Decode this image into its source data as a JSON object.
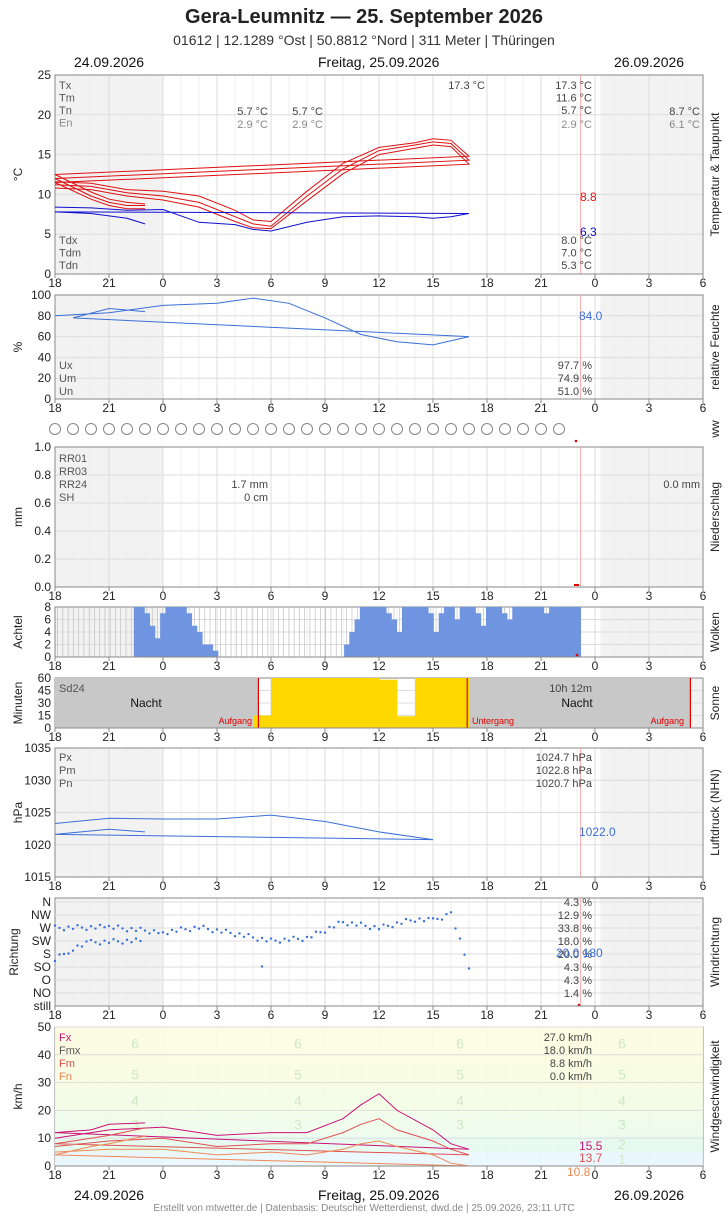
{
  "header": {
    "title": "Gera-Leumnitz  —  25. September 2026",
    "subtitle": "01612  |  12.1289 °Ost  |  50.8812 °Nord  |  311 Meter  |  Thüringen",
    "date_left": "24.09.2026",
    "date_center": "Freitag, 25.09.2026",
    "date_right": "26.09.2026"
  },
  "footer": "Erstellt von mtwetter.de | Datenbasis: Deutscher Wetterdienst, dwd.de | 25.09.2026, 23:11 UTC",
  "x_ticks": [
    "18",
    "21",
    "0",
    "3",
    "6",
    "9",
    "12",
    "15",
    "18",
    "21",
    "0",
    "3",
    "6"
  ],
  "colors": {
    "temp": "#e01010",
    "dew": "#1010d0",
    "blue": "#3a6fd8",
    "cloud": "#6f94e0",
    "sun": "#ffd800",
    "wind_gust": "#cc1177",
    "wind_mean": "#e05050",
    "wind_min": "#ee8855"
  },
  "chart_data": [
    {
      "id": "temperature",
      "type": "line",
      "ylabel": "°C",
      "side_label": "Temperatur & Taupunkt",
      "ylim": [
        0,
        25
      ],
      "yticks": [
        "0",
        "5",
        "10",
        "15",
        "20",
        "25"
      ],
      "x": [
        "18:00",
        "20:00",
        "22:00",
        "00:00",
        "02:00",
        "04:00",
        "05:00",
        "06:00",
        "08:00",
        "10:00",
        "12:00",
        "14:00",
        "15:00",
        "16:00",
        "17:00",
        "18:00",
        "20:00",
        "21:00",
        "22:00",
        "23:00"
      ],
      "series": [
        {
          "name": "Tx",
          "values": [
            11.6,
            11.4,
            10.6,
            10.4,
            9.8,
            8.0,
            6.8,
            6.6,
            10.4,
            13.9,
            15.9,
            16.5,
            17.0,
            16.8,
            14.8,
            12.5,
            10.3,
            9.4,
            9.0,
            8.8
          ]
        },
        {
          "name": "Tm",
          "values": [
            11.2,
            11.0,
            10.2,
            9.8,
            9.0,
            7.2,
            6.3,
            6.0,
            9.8,
            13.2,
            15.5,
            16.2,
            16.6,
            16.4,
            14.3,
            12.0,
            9.8,
            9.0,
            8.6,
            8.6
          ]
        },
        {
          "name": "Tn",
          "values": [
            10.8,
            10.6,
            9.8,
            9.3,
            8.4,
            6.6,
            5.8,
            5.7,
            9.2,
            12.6,
            15.0,
            15.8,
            16.2,
            16.0,
            13.8,
            11.5,
            9.4,
            8.6,
            8.2,
            8.2
          ]
        },
        {
          "name": "Td",
          "values": [
            8.4,
            8.3,
            8.0,
            8.1,
            6.5,
            6.2,
            5.6,
            5.4,
            6.5,
            7.2,
            7.3,
            7.2,
            7.0,
            7.2,
            7.6,
            7.8,
            7.6,
            7.3,
            7.0,
            6.3
          ]
        }
      ],
      "end_labels": {
        "t": "8.8",
        "td": "6.3"
      },
      "legend_top": [
        "Tx",
        "Tm",
        "Tn",
        "En"
      ],
      "legend_bottom": [
        "Tdx",
        "Tdm",
        "Tdn"
      ],
      "annotations": {
        "prev_tn": "5.7 °C",
        "prev_en": "2.9 °C",
        "cur_tn": "5.7 °C",
        "cur_en": "2.9 °C",
        "tx_peak": "17.3 °C",
        "sum_tx": "17.3 °C",
        "sum_tm": "11.6 °C",
        "sum_tn": "5.7 °C",
        "sum_en": "2.9 °C",
        "next_tn": "8.7 °C",
        "next_en": "6.1 °C",
        "sum_tdx": "8.0 °C",
        "sum_tdm": "7.0 °C",
        "sum_tdn": "5.3 °C"
      }
    },
    {
      "id": "humidity",
      "type": "line",
      "ylabel": "%",
      "side_label": "relative Feuchte",
      "ylim": [
        0,
        100
      ],
      "yticks": [
        "0",
        "20",
        "40",
        "60",
        "80",
        "100"
      ],
      "x": [
        "18:00",
        "21:00",
        "00:00",
        "03:00",
        "05:00",
        "07:00",
        "09:00",
        "11:00",
        "13:00",
        "15:00",
        "17:00",
        "19:00",
        "21:00",
        "23:00"
      ],
      "series": [
        {
          "name": "U",
          "values": [
            80,
            83,
            90,
            92,
            97,
            92,
            78,
            62,
            55,
            52,
            60,
            78,
            87,
            84
          ]
        }
      ],
      "end_label": "84.0",
      "legend": [
        "Ux",
        "Um",
        "Un"
      ],
      "summary": [
        "97.7 %",
        "74.9 %",
        "51.0 %"
      ]
    },
    {
      "id": "ww",
      "type": "table",
      "side_label": "ww",
      "count": 29
    },
    {
      "id": "precipitation",
      "type": "bar",
      "ylabel": "mm",
      "side_label": "Niederschlag",
      "ylim": [
        0,
        1.0
      ],
      "yticks": [
        "0.0",
        "0.2",
        "0.4",
        "0.6",
        "0.8",
        "1.0"
      ],
      "legend": [
        "RR01",
        "RR03",
        "RR24",
        "SH"
      ],
      "prev_rr24": "1.7 mm",
      "prev_sh": "0 cm",
      "next_rr24": "0.0 mm",
      "values": []
    },
    {
      "id": "clouds",
      "type": "bar",
      "ylabel": "Achtel",
      "side_label": "Wolken",
      "ylim": [
        0,
        8
      ],
      "yticks": [
        "0",
        "2",
        "4",
        "6",
        "8"
      ],
      "values": [
        0,
        0,
        0,
        0,
        0,
        0,
        0,
        0,
        0,
        0,
        0,
        0,
        0,
        0,
        0,
        8,
        8,
        7,
        5,
        3,
        7,
        8,
        8,
        8,
        8,
        7,
        5,
        4,
        2,
        2,
        1,
        0,
        0,
        0,
        0,
        0,
        0,
        0,
        0,
        0,
        0,
        0,
        0,
        0,
        0,
        0,
        0,
        0,
        0,
        0,
        0,
        0,
        0,
        0,
        0,
        2,
        4,
        6,
        8,
        8,
        8,
        8,
        8,
        7,
        6,
        4,
        8,
        8,
        8,
        8,
        8,
        7,
        4,
        7,
        8,
        8,
        6,
        8,
        8,
        8,
        7,
        5,
        8,
        8,
        8,
        7,
        6,
        8,
        8,
        8,
        8,
        8,
        8,
        7,
        8,
        8,
        8,
        8,
        8,
        8
      ]
    },
    {
      "id": "sun",
      "type": "bar",
      "ylabel": "Minuten",
      "side_label": "Sonne",
      "ylim": [
        0,
        60
      ],
      "yticks": [
        "0",
        "15",
        "30",
        "45",
        "60"
      ],
      "hours": [
        "18",
        "19",
        "20",
        "21",
        "22",
        "23",
        "0",
        "1",
        "2",
        "3",
        "4",
        "5",
        "6",
        "7",
        "8",
        "9",
        "10",
        "11",
        "12",
        "13",
        "14",
        "15",
        "16",
        "17",
        "18",
        "19",
        "20",
        "21",
        "22",
        "23",
        "0",
        "1",
        "2",
        "3",
        "4",
        "5"
      ],
      "values": [
        0,
        0,
        0,
        0,
        0,
        0,
        0,
        0,
        0,
        0,
        0,
        15,
        60,
        60,
        60,
        60,
        60,
        60,
        58,
        14,
        60,
        60,
        60,
        0,
        0,
        0,
        0,
        0,
        0,
        0,
        0,
        0,
        0,
        0,
        0,
        0
      ],
      "labels": {
        "sd24": "Sd24",
        "duration": "10h 12m",
        "night": "Nacht",
        "sunrise": "Aufgang",
        "sunset": "Untergang"
      }
    },
    {
      "id": "pressure",
      "type": "line",
      "ylabel": "hPa",
      "side_label": "Luftdruck (NHN)",
      "ylim": [
        1015,
        1035
      ],
      "yticks": [
        "1015",
        "1020",
        "1025",
        "1030",
        "1035"
      ],
      "x": [
        "18:00",
        "21:00",
        "00:00",
        "03:00",
        "06:00",
        "09:00",
        "12:00",
        "15:00",
        "18:00",
        "21:00",
        "23:00"
      ],
      "series": [
        {
          "name": "P",
          "values": [
            1023.3,
            1024.1,
            1024.0,
            1024.0,
            1024.6,
            1023.6,
            1022.0,
            1020.8,
            1021.6,
            1022.4,
            1022.0
          ]
        }
      ],
      "end_label": "1022.0",
      "legend": [
        "Px",
        "Pm",
        "Pn"
      ],
      "summary": [
        "1024.7 hPa",
        "1022.8 hPa",
        "1020.7 hPa"
      ]
    },
    {
      "id": "wind_direction",
      "type": "scatter",
      "ylabel": "Richtung",
      "side_label": "Windrichtung",
      "categories": [
        "N",
        "NW",
        "W",
        "SW",
        "S",
        "SO",
        "O",
        "NO",
        "still"
      ],
      "x": [
        "18:00",
        "21:00",
        "00:00",
        "02:00",
        "04:00",
        "06:00",
        "08:00",
        "10:00",
        "12:00",
        "14:00",
        "15:00",
        "16:00",
        "17:00",
        "18:00",
        "19:00",
        "20:00",
        "22:00",
        "23:00"
      ],
      "y_deg": [
        270,
        273,
        255,
        272,
        250,
        225,
        235,
        290,
        270,
        300,
        295,
        320,
        130,
        160,
        200,
        220,
        225,
        225
      ],
      "end_label": "20.0 180",
      "summary": [
        "4.3 %",
        "12.9 %",
        "33.8 %",
        "18.0 %",
        "20.0 %",
        "4.3 %",
        "4.3 %",
        "1.4 %",
        ""
      ]
    },
    {
      "id": "wind_speed",
      "type": "line",
      "ylabel": "km/h",
      "side_label": "Windgeschwindigkeit",
      "ylim": [
        0,
        50
      ],
      "yticks": [
        "0",
        "10",
        "20",
        "30",
        "40",
        "50"
      ],
      "x": [
        "18:00",
        "21:00",
        "00:00",
        "03:00",
        "06:00",
        "08:00",
        "10:00",
        "11:00",
        "12:00",
        "13:00",
        "15:00",
        "16:00",
        "17:00",
        "18:00",
        "20:00",
        "21:00",
        "23:00"
      ],
      "series": [
        {
          "name": "Fx",
          "values": [
            10,
            13,
            14,
            11,
            12,
            12,
            17,
            22,
            26,
            20,
            13,
            8,
            6,
            12,
            13,
            15,
            15.5
          ]
        },
        {
          "name": "Fm",
          "values": [
            7,
            9,
            10,
            7,
            8,
            8,
            12,
            15,
            17,
            13,
            9,
            6,
            4,
            8,
            10,
            11,
            13.7
          ]
        },
        {
          "name": "Fn",
          "values": [
            5,
            6,
            6,
            4,
            5,
            4,
            6,
            8,
            9,
            7,
            4,
            1,
            0,
            4,
            7,
            8,
            10.8
          ]
        }
      ],
      "end_labels": [
        "15.5",
        "13.7",
        "10.8"
      ],
      "legend": [
        "Fx",
        "Fmx",
        "Fm",
        "Fn"
      ],
      "summary": [
        "27.0 km/h",
        "18.0 km/h",
        "8.8 km/h",
        "0.0 km/h"
      ],
      "bft_numbers": [
        "1",
        "2",
        "3",
        "4",
        "5",
        "6"
      ]
    }
  ]
}
